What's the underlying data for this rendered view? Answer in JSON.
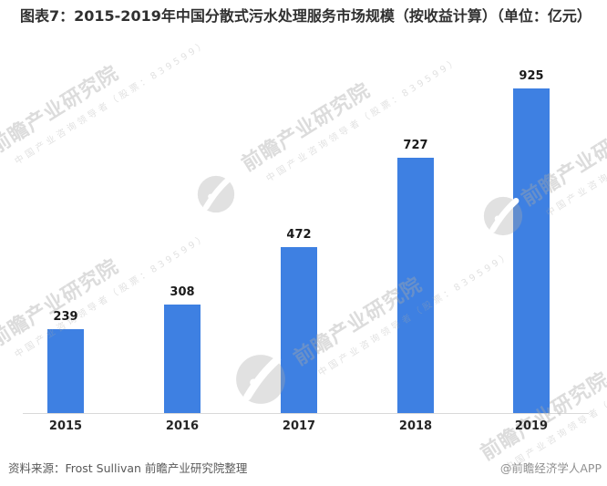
{
  "title": "图表7：2015-2019年中国分散式污水处理服务市场规模（按收益计算）（单位：亿元）",
  "chart_data": {
    "type": "bar",
    "categories": [
      "2015",
      "2016",
      "2017",
      "2018",
      "2019"
    ],
    "values": [
      239,
      308,
      472,
      727,
      925
    ],
    "title": "2015-2019年中国分散式污水处理服务市场规模（按收益计算）",
    "unit": "亿元",
    "xlabel": "",
    "ylabel": "",
    "ylim": [
      0,
      990
    ],
    "bar_color": "#3e80e2",
    "value_labels": [
      "239",
      "308",
      "472",
      "727",
      "925"
    ],
    "grid": "off",
    "legend": "none",
    "axis_line_color": "#d9d9d9"
  },
  "footer": {
    "source": "资料来源：Frost Sullivan 前瞻产业研究院整理",
    "credit": "@前瞻经济学人APP"
  },
  "watermark": {
    "brand": "前瞻产业研究院",
    "tagline": "中国产业咨询领导者（股票：839599）",
    "logo": "qianzhan-bird-logo"
  }
}
